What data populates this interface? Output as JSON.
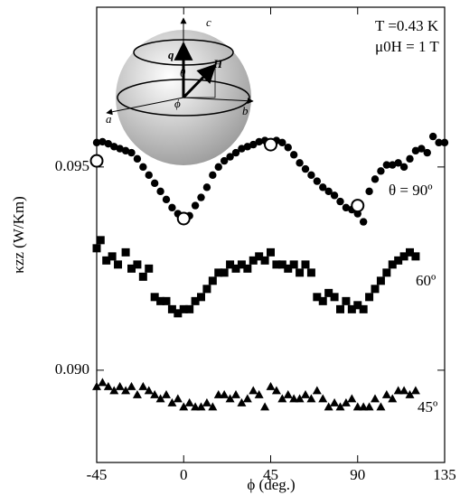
{
  "chart_data": {
    "type": "scatter",
    "xlabel": "ϕ (deg.)",
    "ylabel": "κzz (W/Km)",
    "xlim": [
      -45,
      135
    ],
    "ylim": [
      0.08773,
      0.09893
    ],
    "xticks": [
      -45,
      0,
      45,
      90,
      135
    ],
    "yticks": [
      {
        "value": 0.09,
        "label": "0.090"
      },
      {
        "value": 0.095,
        "label": "0.095"
      }
    ],
    "annotations": [
      "T =0.43 K",
      "μ0H = 1 T"
    ],
    "inset_labels": [
      "c",
      "q",
      "θ",
      "H",
      "a",
      "b",
      "ϕ"
    ],
    "series": [
      {
        "name": "θ = 90º",
        "marker": "circle",
        "color": "#000",
        "x": [
          -45,
          -42,
          -39,
          -36,
          -33,
          -30,
          -27,
          -24,
          -21,
          -18,
          -15,
          -12,
          -9,
          -6,
          -3,
          0,
          3,
          6,
          9,
          12,
          15,
          18,
          21,
          24,
          27,
          30,
          33,
          36,
          39,
          42,
          45,
          48,
          51,
          54,
          57,
          60,
          63,
          66,
          69,
          72,
          75,
          78,
          81,
          84,
          87,
          90,
          93,
          96,
          99,
          102,
          105,
          108,
          111,
          114,
          117,
          120,
          123,
          126,
          129,
          132,
          135
        ],
        "values": [
          0.0956,
          0.09562,
          0.09557,
          0.0955,
          0.09545,
          0.0954,
          0.09535,
          0.0952,
          0.095,
          0.0948,
          0.0946,
          0.0944,
          0.0942,
          0.094,
          0.09385,
          0.09375,
          0.0938,
          0.09405,
          0.09425,
          0.0945,
          0.0948,
          0.095,
          0.09515,
          0.09525,
          0.09535,
          0.09545,
          0.0955,
          0.09555,
          0.09562,
          0.09565,
          0.0956,
          0.09565,
          0.0956,
          0.09548,
          0.0953,
          0.0951,
          0.09495,
          0.0948,
          0.09465,
          0.0945,
          0.0944,
          0.0943,
          0.09415,
          0.094,
          0.09395,
          0.09385,
          0.09365,
          0.0944,
          0.0947,
          0.0949,
          0.09505,
          0.09505,
          0.0951,
          0.095,
          0.0952,
          0.0954,
          0.09545,
          0.09535,
          0.09575,
          0.0956,
          0.0956
        ]
      },
      {
        "marker": "open-circle",
        "color": "#000",
        "x": [
          -45,
          0,
          45,
          90
        ],
        "values": [
          0.09515,
          0.09373,
          0.09555,
          0.09405
        ]
      },
      {
        "name": "60º",
        "marker": "square",
        "color": "#000",
        "x": [
          -45,
          -43,
          -40,
          -37,
          -34,
          -30,
          -27,
          -24,
          -21,
          -18,
          -15,
          -12,
          -9,
          -6,
          -3,
          0,
          3,
          6,
          9,
          12,
          15,
          18,
          21,
          24,
          27,
          30,
          33,
          36,
          39,
          42,
          45,
          48,
          51,
          54,
          57,
          60,
          63,
          66,
          69,
          72,
          75,
          78,
          81,
          84,
          87,
          90,
          93,
          96,
          99,
          102,
          105,
          108,
          111,
          114,
          117,
          120
        ],
        "values": [
          0.093,
          0.0932,
          0.0927,
          0.0928,
          0.0926,
          0.0929,
          0.0925,
          0.0926,
          0.0923,
          0.0925,
          0.0918,
          0.0917,
          0.0917,
          0.0915,
          0.0914,
          0.0915,
          0.0915,
          0.0917,
          0.0918,
          0.092,
          0.0922,
          0.0924,
          0.0924,
          0.0926,
          0.0925,
          0.0926,
          0.0925,
          0.0927,
          0.0928,
          0.0927,
          0.0929,
          0.0926,
          0.0926,
          0.0925,
          0.0926,
          0.0924,
          0.0926,
          0.0924,
          0.0918,
          0.0917,
          0.0919,
          0.0918,
          0.0915,
          0.0917,
          0.0915,
          0.0916,
          0.0915,
          0.0918,
          0.092,
          0.0922,
          0.0924,
          0.0926,
          0.0927,
          0.0928,
          0.0929,
          0.0928
        ]
      },
      {
        "name": "45º",
        "marker": "triangle",
        "color": "#000",
        "x": [
          -45,
          -42,
          -39,
          -36,
          -33,
          -30,
          -27,
          -24,
          -21,
          -18,
          -15,
          -12,
          -9,
          -6,
          -3,
          0,
          3,
          6,
          9,
          12,
          15,
          18,
          21,
          24,
          27,
          30,
          33,
          36,
          39,
          42,
          45,
          48,
          51,
          54,
          57,
          60,
          63,
          66,
          69,
          72,
          75,
          78,
          81,
          84,
          87,
          90,
          93,
          96,
          99,
          102,
          105,
          108,
          111,
          114,
          117,
          120
        ],
        "values": [
          0.0896,
          0.0897,
          0.0896,
          0.0895,
          0.0896,
          0.0895,
          0.0896,
          0.0894,
          0.0896,
          0.0895,
          0.0894,
          0.0893,
          0.0894,
          0.0892,
          0.0893,
          0.0891,
          0.0892,
          0.0891,
          0.0891,
          0.0892,
          0.0891,
          0.0894,
          0.0894,
          0.0893,
          0.0894,
          0.0892,
          0.0893,
          0.0895,
          0.0894,
          0.0891,
          0.0896,
          0.0895,
          0.0893,
          0.0894,
          0.0893,
          0.0893,
          0.0894,
          0.0893,
          0.0895,
          0.0893,
          0.0891,
          0.0892,
          0.0891,
          0.0892,
          0.0893,
          0.0891,
          0.0891,
          0.0891,
          0.0893,
          0.0891,
          0.0894,
          0.0893,
          0.0895,
          0.0895,
          0.0894,
          0.0895
        ]
      }
    ]
  }
}
